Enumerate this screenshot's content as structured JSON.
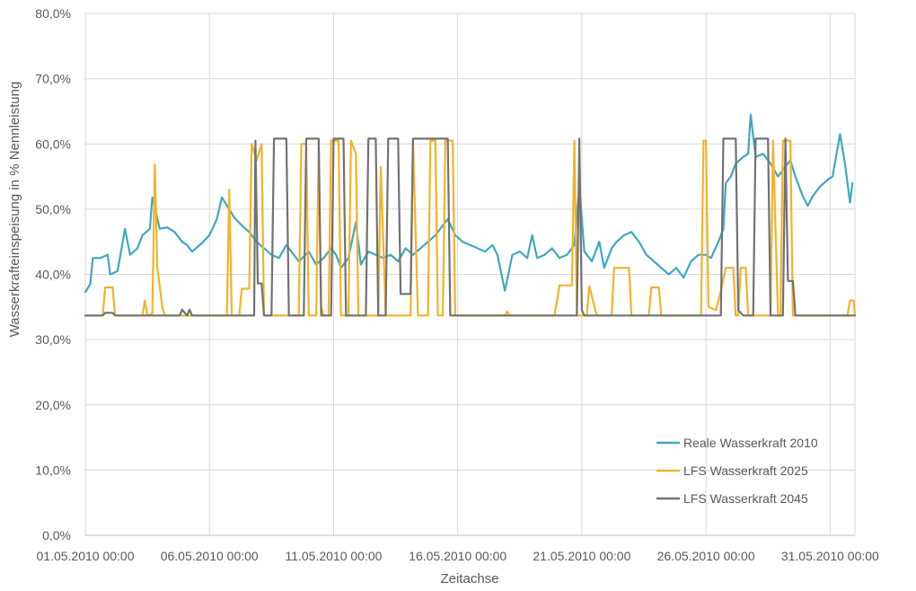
{
  "chart_data": {
    "type": "line",
    "xlabel": "Zeitachse",
    "ylabel": "Wasserkrafteinspeisung in % Nennleistung",
    "ylim": [
      0,
      80
    ],
    "xlim_days": [
      0,
      31
    ],
    "y_ticks": [
      "0,0%",
      "10,0%",
      "20,0%",
      "30,0%",
      "40,0%",
      "50,0%",
      "60,0%",
      "70,0%",
      "80,0%"
    ],
    "x_ticks": [
      {
        "day": 0,
        "label": "01.05.2010 00:00"
      },
      {
        "day": 5,
        "label": "06.05.2010 00:00"
      },
      {
        "day": 10,
        "label": "11.05.2010 00:00"
      },
      {
        "day": 15,
        "label": "16.05.2010 00:00"
      },
      {
        "day": 20,
        "label": "21.05.2010 00:00"
      },
      {
        "day": 25,
        "label": "26.05.2010 00:00"
      },
      {
        "day": 30,
        "label": "31.05.2010 00:00"
      }
    ],
    "grid": true,
    "legend_position": "bottom-right",
    "series": [
      {
        "name": "Reale Wasserkraft 2010",
        "color": "#3FA7C4",
        "points": [
          [
            0,
            37.3
          ],
          [
            0.2,
            38.5
          ],
          [
            0.3,
            42.5
          ],
          [
            0.6,
            42.5
          ],
          [
            0.9,
            43
          ],
          [
            1,
            40
          ],
          [
            1.3,
            40.5
          ],
          [
            1.6,
            47
          ],
          [
            1.8,
            43
          ],
          [
            2.1,
            44
          ],
          [
            2.3,
            46
          ],
          [
            2.6,
            47
          ],
          [
            2.7,
            51.8
          ],
          [
            3,
            47
          ],
          [
            3.3,
            47.2
          ],
          [
            3.6,
            46.5
          ],
          [
            3.9,
            45
          ],
          [
            4.1,
            44.5
          ],
          [
            4.3,
            43.5
          ],
          [
            4.7,
            44.8
          ],
          [
            5,
            46
          ],
          [
            5.3,
            48.5
          ],
          [
            5.5,
            51.8
          ],
          [
            5.8,
            50
          ],
          [
            6,
            48.7
          ],
          [
            6.3,
            47.5
          ],
          [
            6.6,
            46.5
          ],
          [
            6.9,
            45
          ],
          [
            7.2,
            44
          ],
          [
            7.5,
            43
          ],
          [
            7.8,
            42.5
          ],
          [
            8.1,
            44.5
          ],
          [
            8.4,
            43
          ],
          [
            8.6,
            42
          ],
          [
            9,
            43.5
          ],
          [
            9.3,
            41.5
          ],
          [
            9.6,
            42.5
          ],
          [
            9.9,
            44
          ],
          [
            10.1,
            43
          ],
          [
            10.3,
            41
          ],
          [
            10.6,
            42.5
          ],
          [
            10.9,
            48
          ],
          [
            11.1,
            41.5
          ],
          [
            11.4,
            43.5
          ],
          [
            11.7,
            43
          ],
          [
            12,
            42.5
          ],
          [
            12.3,
            43
          ],
          [
            12.6,
            42
          ],
          [
            12.9,
            44
          ],
          [
            13.2,
            43
          ],
          [
            13.5,
            44
          ],
          [
            13.8,
            45
          ],
          [
            14.1,
            46
          ],
          [
            14.3,
            47
          ],
          [
            14.6,
            48.5
          ],
          [
            14.9,
            46
          ],
          [
            15.2,
            45
          ],
          [
            15.5,
            44.5
          ],
          [
            15.8,
            44
          ],
          [
            16.1,
            43.5
          ],
          [
            16.4,
            44.5
          ],
          [
            16.6,
            43
          ],
          [
            16.9,
            37.5
          ],
          [
            17.2,
            43
          ],
          [
            17.5,
            43.5
          ],
          [
            17.8,
            42.5
          ],
          [
            18,
            46
          ],
          [
            18.2,
            42.5
          ],
          [
            18.5,
            43
          ],
          [
            18.8,
            44
          ],
          [
            19.1,
            42.5
          ],
          [
            19.4,
            43
          ],
          [
            19.7,
            44.5
          ],
          [
            19.9,
            53.5
          ],
          [
            20.1,
            43.5
          ],
          [
            20.4,
            42
          ],
          [
            20.7,
            45
          ],
          [
            20.9,
            41
          ],
          [
            21.2,
            44
          ],
          [
            21.4,
            45
          ],
          [
            21.7,
            46
          ],
          [
            22,
            46.5
          ],
          [
            22.3,
            45
          ],
          [
            22.6,
            43
          ],
          [
            22.9,
            42
          ],
          [
            23.2,
            41
          ],
          [
            23.5,
            40
          ],
          [
            23.8,
            41
          ],
          [
            24.1,
            39.5
          ],
          [
            24.4,
            42
          ],
          [
            24.7,
            43
          ],
          [
            25,
            43
          ],
          [
            25.2,
            42.5
          ],
          [
            25.5,
            45
          ],
          [
            25.7,
            47
          ],
          [
            25.8,
            54
          ],
          [
            26,
            55
          ],
          [
            26.2,
            57
          ],
          [
            26.5,
            58
          ],
          [
            26.7,
            58.5
          ],
          [
            26.8,
            64.5
          ],
          [
            27,
            58
          ],
          [
            27.3,
            58.5
          ],
          [
            27.6,
            57
          ],
          [
            27.9,
            55
          ],
          [
            28.1,
            56
          ],
          [
            28.4,
            57.5
          ],
          [
            28.6,
            55
          ],
          [
            28.9,
            52
          ],
          [
            29.1,
            50.5
          ],
          [
            29.3,
            52
          ],
          [
            29.6,
            53.5
          ],
          [
            29.9,
            54.5
          ],
          [
            30.1,
            55
          ],
          [
            30.4,
            61.5
          ],
          [
            30.6,
            57
          ],
          [
            30.8,
            51
          ],
          [
            30.9,
            54
          ]
        ]
      },
      {
        "name": "LFS Wasserkraft 2025",
        "color": "#F5B229",
        "points": [
          [
            0,
            33.7
          ],
          [
            0.7,
            33.7
          ],
          [
            0.8,
            38
          ],
          [
            1.1,
            38
          ],
          [
            1.2,
            33.7
          ],
          [
            2.3,
            33.7
          ],
          [
            2.4,
            36
          ],
          [
            2.5,
            33.7
          ],
          [
            2.7,
            34
          ],
          [
            2.8,
            56.8
          ],
          [
            2.9,
            41
          ],
          [
            3.1,
            35
          ],
          [
            3.2,
            33.7
          ],
          [
            5.7,
            33.7
          ],
          [
            5.8,
            53
          ],
          [
            5.9,
            33.7
          ],
          [
            6.2,
            33.7
          ],
          [
            6.3,
            37.8
          ],
          [
            6.6,
            37.8
          ],
          [
            6.7,
            60
          ],
          [
            6.9,
            57.5
          ],
          [
            7.1,
            60
          ],
          [
            7.2,
            33.7
          ],
          [
            8.6,
            33.7
          ],
          [
            8.7,
            60
          ],
          [
            8.9,
            60
          ],
          [
            9,
            33.7
          ],
          [
            9.3,
            33.7
          ],
          [
            9.4,
            60.5
          ],
          [
            9.5,
            35
          ],
          [
            9.6,
            33.7
          ],
          [
            9.8,
            33.7
          ],
          [
            9.9,
            60.5
          ],
          [
            10.2,
            60.5
          ],
          [
            10.3,
            33.7
          ],
          [
            10.6,
            33.7
          ],
          [
            10.7,
            60.5
          ],
          [
            10.9,
            58.5
          ],
          [
            11,
            33.7
          ],
          [
            11.8,
            33.7
          ],
          [
            11.9,
            56.5
          ],
          [
            12.1,
            33.7
          ],
          [
            13.1,
            33.7
          ],
          [
            13.2,
            60.5
          ],
          [
            13.4,
            33.7
          ],
          [
            13.8,
            33.7
          ],
          [
            13.9,
            60.5
          ],
          [
            14.1,
            60.5
          ],
          [
            14.2,
            33.7
          ],
          [
            14.4,
            33.7
          ],
          [
            14.5,
            60.5
          ],
          [
            14.8,
            60.5
          ],
          [
            14.9,
            33.7
          ],
          [
            16.9,
            33.7
          ],
          [
            17,
            34.3
          ],
          [
            17.1,
            33.7
          ],
          [
            18.9,
            33.7
          ],
          [
            19.1,
            38.3
          ],
          [
            19.6,
            38.3
          ],
          [
            19.7,
            60.5
          ],
          [
            19.8,
            33.7
          ],
          [
            20.2,
            33.7
          ],
          [
            20.3,
            38.2
          ],
          [
            20.6,
            33.7
          ],
          [
            21.2,
            33.7
          ],
          [
            21.3,
            41
          ],
          [
            21.9,
            41
          ],
          [
            22,
            33.7
          ],
          [
            22.7,
            33.7
          ],
          [
            22.8,
            38
          ],
          [
            23.1,
            38
          ],
          [
            23.2,
            33.7
          ],
          [
            24.8,
            33.7
          ],
          [
            24.9,
            60.5
          ],
          [
            25,
            60.5
          ],
          [
            25.1,
            35
          ],
          [
            25.4,
            34.5
          ],
          [
            25.6,
            37.5
          ],
          [
            25.8,
            41
          ],
          [
            26.1,
            41
          ],
          [
            26.2,
            33.7
          ],
          [
            26.3,
            33.7
          ],
          [
            26.4,
            41
          ],
          [
            26.6,
            41
          ],
          [
            26.7,
            33.7
          ],
          [
            27.6,
            33.7
          ],
          [
            27.7,
            60.5
          ],
          [
            27.9,
            33.7
          ],
          [
            28,
            33.7
          ],
          [
            28.1,
            60.5
          ],
          [
            28.4,
            60.5
          ],
          [
            28.5,
            33.7
          ],
          [
            30.7,
            33.7
          ],
          [
            30.8,
            36
          ],
          [
            30.95,
            36
          ],
          [
            31,
            33.7
          ]
        ]
      },
      {
        "name": "LFS Wasserkraft 2045",
        "color": "#727272",
        "points": [
          [
            0,
            33.7
          ],
          [
            0.7,
            33.7
          ],
          [
            0.8,
            34.1
          ],
          [
            1.1,
            34.1
          ],
          [
            1.2,
            33.7
          ],
          [
            3.8,
            33.7
          ],
          [
            3.9,
            34.6
          ],
          [
            4.1,
            33.7
          ],
          [
            4.2,
            34.6
          ],
          [
            4.3,
            33.7
          ],
          [
            6.8,
            33.7
          ],
          [
            6.85,
            60.5
          ],
          [
            6.95,
            38.6
          ],
          [
            7.1,
            38.6
          ],
          [
            7.2,
            33.7
          ],
          [
            7.5,
            33.7
          ],
          [
            7.6,
            60.8
          ],
          [
            8.1,
            60.8
          ],
          [
            8.2,
            33.7
          ],
          [
            8.8,
            33.7
          ],
          [
            8.9,
            60.8
          ],
          [
            9.4,
            60.8
          ],
          [
            9.5,
            33.7
          ],
          [
            9.9,
            33.7
          ],
          [
            10,
            60.8
          ],
          [
            10.4,
            60.8
          ],
          [
            10.5,
            33.7
          ],
          [
            11.3,
            33.7
          ],
          [
            11.4,
            60.8
          ],
          [
            11.7,
            60.8
          ],
          [
            11.8,
            33.7
          ],
          [
            12.1,
            33.7
          ],
          [
            12.2,
            60.8
          ],
          [
            12.6,
            60.8
          ],
          [
            12.7,
            37
          ],
          [
            13.1,
            37
          ],
          [
            13.2,
            60.8
          ],
          [
            14.2,
            60.8
          ],
          [
            14.3,
            60.8
          ],
          [
            14.6,
            60.8
          ],
          [
            14.7,
            33.7
          ],
          [
            19.8,
            33.7
          ],
          [
            19.9,
            60.8
          ],
          [
            20,
            34.5
          ],
          [
            20.1,
            33.7
          ],
          [
            25.6,
            33.7
          ],
          [
            25.7,
            60.8
          ],
          [
            26.2,
            60.8
          ],
          [
            26.3,
            34.5
          ],
          [
            26.5,
            33.7
          ],
          [
            26.9,
            33.7
          ],
          [
            27,
            60.8
          ],
          [
            27.5,
            60.8
          ],
          [
            27.6,
            33.7
          ],
          [
            28.1,
            33.7
          ],
          [
            28.2,
            60.8
          ],
          [
            28.3,
            39
          ],
          [
            28.5,
            39
          ],
          [
            28.6,
            33.7
          ],
          [
            31,
            33.7
          ]
        ]
      }
    ]
  }
}
